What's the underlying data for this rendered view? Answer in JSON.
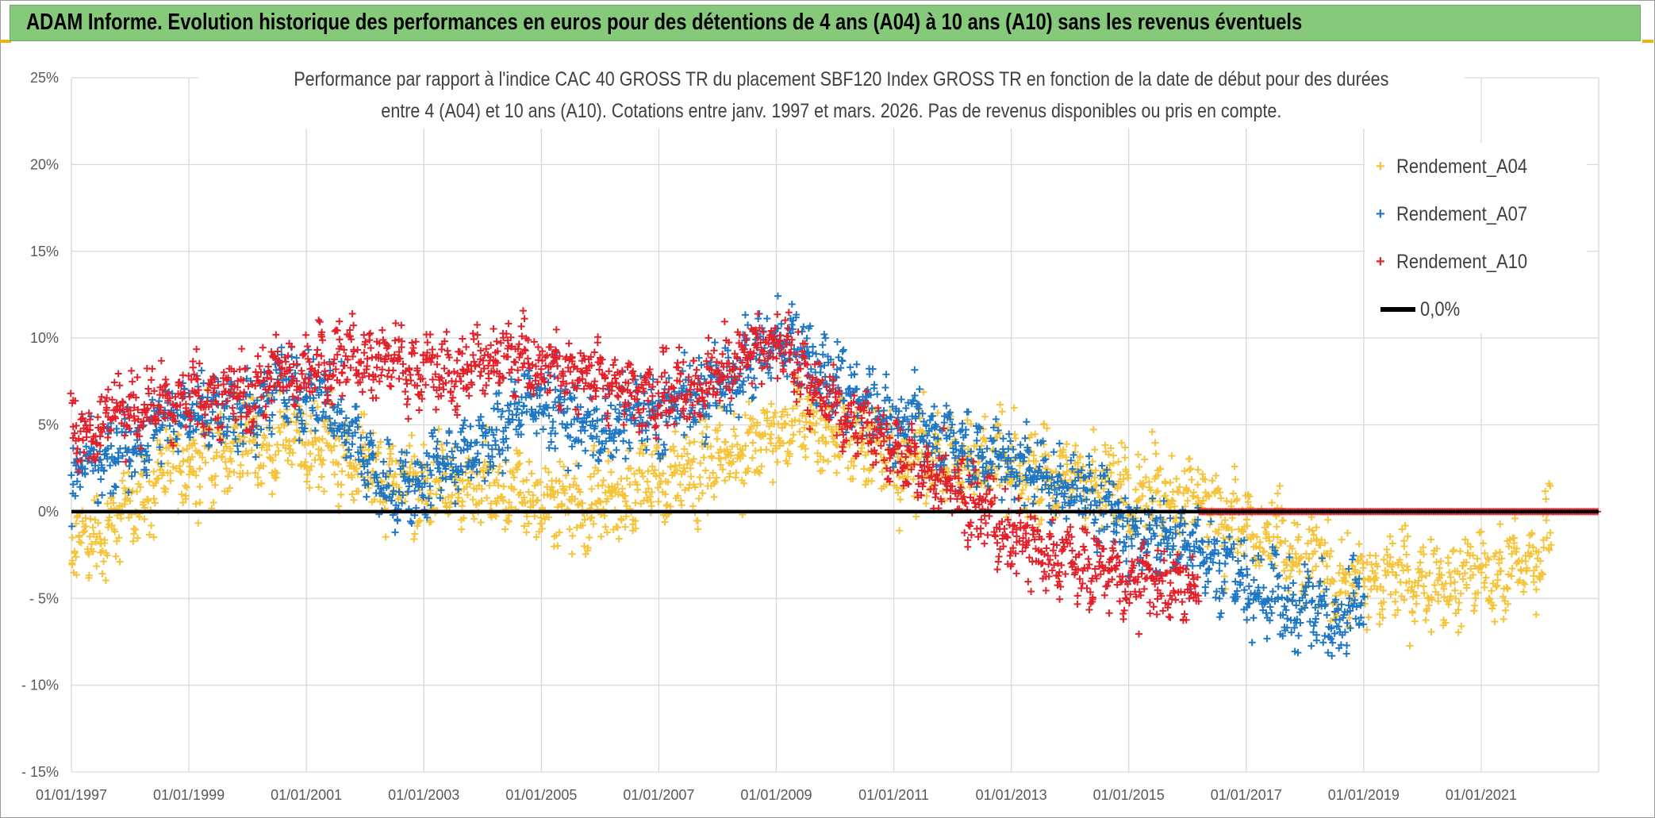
{
  "banner": {
    "title": "ADAM Informe. Evolution historique des performances en euros pour des détentions de 4 ans (A04) à 10 ans (A10) sans les revenus éventuels",
    "background": "#86c97b"
  },
  "chart_data": {
    "type": "scatter",
    "title_line1": "Performance par rapport à l'indice CAC 40 GROSS TR  du placement SBF120 Index GROSS TR en fonction de la date de début pour des durées",
    "title_line2": "entre 4 (A04) et 10 ans (A10). Cotations entre janv. 1997 et mars. 2026. Pas de revenus disponibles ou pris en compte.",
    "xlabel": "",
    "ylabel": "",
    "x_range_years": [
      1997.0,
      2023.0
    ],
    "ylim": [
      -15,
      25
    ],
    "y_ticks": [
      25,
      20,
      15,
      10,
      5,
      0,
      -5,
      -10,
      -15
    ],
    "y_tick_labels": [
      "25%",
      "20%",
      "15%",
      "10%",
      "5%",
      "0%",
      "- 5%",
      "- 10%",
      "- 15%"
    ],
    "x_tick_years": [
      1997,
      1999,
      2001,
      2003,
      2005,
      2007,
      2009,
      2011,
      2013,
      2015,
      2017,
      2019,
      2021
    ],
    "x_tick_labels": [
      "01/01/1997",
      "01/01/1999",
      "01/01/2001",
      "01/01/2003",
      "01/01/2005",
      "01/01/2007",
      "01/01/2009",
      "01/01/2011",
      "01/01/2013",
      "01/01/2015",
      "01/01/2017",
      "01/01/2019",
      "01/01/2021"
    ],
    "grid": true,
    "legend_position": "top-right",
    "reference_line": {
      "name": "0,0%",
      "value": 0,
      "color": "#000000"
    },
    "series": [
      {
        "name": "Rendement_A04",
        "color": "#f5c43a",
        "end_year": 2022.2,
        "trend_x": [
          1997.0,
          1997.5,
          1998.0,
          1998.5,
          1999.0,
          1999.5,
          2000.0,
          2000.5,
          2001.0,
          2001.5,
          2002.0,
          2002.5,
          2003.0,
          2003.5,
          2004.0,
          2004.5,
          2005.0,
          2005.5,
          2006.0,
          2006.5,
          2007.0,
          2007.5,
          2008.0,
          2008.5,
          2009.0,
          2009.5,
          2010.0,
          2010.5,
          2011.0,
          2011.5,
          2012.0,
          2012.5,
          2013.0,
          2013.5,
          2014.0,
          2014.5,
          2015.0,
          2015.5,
          2016.0,
          2016.5,
          2017.0,
          2017.5,
          2018.0,
          2018.5,
          2019.0,
          2019.5,
          2020.0,
          2020.5,
          2021.0,
          2021.5,
          2022.0,
          2022.2
        ],
        "trend_y": [
          -2,
          -1.5,
          0.5,
          2,
          3,
          3.5,
          4,
          4,
          4,
          3.5,
          2.5,
          2,
          1.5,
          1,
          1,
          1,
          0.5,
          0.5,
          0.5,
          1,
          2,
          2.5,
          3,
          3.5,
          5,
          5,
          4.5,
          4,
          3,
          3,
          3,
          3,
          2.5,
          2,
          2,
          1.5,
          1.5,
          1,
          1,
          0,
          -1,
          -2,
          -3,
          -3.5,
          -4,
          -4,
          -4,
          -4,
          -3.5,
          -3.5,
          -2.5,
          0
        ],
        "spread": 2.2,
        "noise_waves": [
          0.5,
          1.2
        ]
      },
      {
        "name": "Rendement_A07",
        "color": "#1f77c4",
        "end_year": 2019.0,
        "trend_x": [
          1997.0,
          1997.5,
          1998.0,
          1998.5,
          1999.0,
          1999.5,
          2000.0,
          2000.5,
          2001.0,
          2001.5,
          2002.0,
          2002.5,
          2003.0,
          2003.5,
          2004.0,
          2004.5,
          2005.0,
          2005.5,
          2006.0,
          2006.5,
          2007.0,
          2007.5,
          2008.0,
          2008.5,
          2009.0,
          2009.5,
          2010.0,
          2010.5,
          2011.0,
          2011.5,
          2012.0,
          2012.5,
          2013.0,
          2013.5,
          2014.0,
          2014.5,
          2015.0,
          2015.5,
          2016.0,
          2016.5,
          2017.0,
          2017.5,
          2018.0,
          2018.5,
          2019.0
        ],
        "trend_y": [
          2,
          3,
          3.5,
          5,
          6,
          6,
          5.5,
          7,
          7,
          6,
          3,
          1,
          2,
          3,
          3.5,
          5.5,
          6.5,
          5.5,
          4.5,
          5.5,
          5.5,
          6.5,
          7,
          8.5,
          10,
          9.5,
          7,
          6.5,
          5.5,
          5,
          4,
          3,
          3,
          2,
          1.5,
          0.5,
          -1,
          -1.5,
          -1.5,
          -3,
          -4,
          -5,
          -5.5,
          -6,
          -5
        ],
        "spread": 2.0,
        "noise_waves": [
          0.4,
          1.0
        ]
      },
      {
        "name": "Rendement_A10",
        "color": "#e3212a",
        "end_year": 2016.2,
        "trend_x": [
          1997.0,
          1997.5,
          1998.0,
          1998.5,
          1999.0,
          1999.5,
          2000.0,
          2000.5,
          2001.0,
          2001.5,
          2002.0,
          2002.5,
          2003.0,
          2003.5,
          2004.0,
          2004.5,
          2005.0,
          2005.5,
          2006.0,
          2006.5,
          2007.0,
          2007.5,
          2008.0,
          2008.5,
          2009.0,
          2009.5,
          2010.0,
          2010.5,
          2011.0,
          2011.5,
          2012.0,
          2012.5,
          2013.0,
          2013.5,
          2014.0,
          2014.5,
          2015.0,
          2015.5,
          2016.0,
          2016.2
        ],
        "trend_y": [
          4.5,
          5,
          6,
          6,
          6.5,
          6.5,
          6.5,
          8,
          8,
          9,
          9,
          8.5,
          8,
          8,
          8.5,
          9,
          8.5,
          8,
          8,
          7,
          6.5,
          7,
          8,
          9,
          10,
          8,
          6,
          5,
          3.5,
          2.5,
          1.5,
          0,
          -1.5,
          -2.5,
          -3,
          -3.5,
          -4,
          -4,
          -4.5,
          -4.5
        ],
        "spread": 1.8,
        "noise_waves": [
          0.4,
          1.0
        ],
        "flat_zero_from": 2016.2,
        "flat_zero_to": 2023.0
      }
    ]
  }
}
